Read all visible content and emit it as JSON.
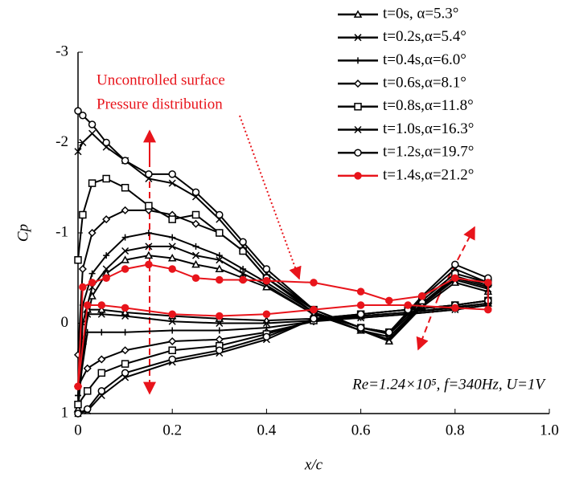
{
  "chart_data": {
    "type": "line",
    "xlabel": "x/c",
    "ylabel": "Cp",
    "annotations": [
      "Uncontrolled surface",
      "Pressure distribution",
      "Re=1.24×10⁵, f=340Hz, U=1V"
    ],
    "x": [
      0,
      0.01,
      0.03,
      0.06,
      0.1,
      0.15,
      0.2,
      0.25,
      0.3,
      0.35,
      0.4,
      0.5,
      0.6,
      0.66,
      0.73,
      0.8,
      0.87,
      0.87,
      0.8,
      0.7,
      0.6,
      0.5,
      0.4,
      0.3,
      0.2,
      0.1,
      0.05,
      0.02,
      0
    ],
    "xlim": [
      0,
      1
    ],
    "xticks": [
      0,
      0.2,
      0.4,
      0.6,
      0.8,
      {
        "value": 1,
        "label": "1.0"
      }
    ],
    "ylim": [
      1,
      -3
    ],
    "yticks": [
      1,
      0,
      -1,
      -2,
      -3
    ],
    "series": [
      {
        "name": "t=0s,  α=5.3°",
        "color": "#000000",
        "marker": "triangle",
        "values": [
          0.95,
          0.2,
          -0.3,
          -0.55,
          -0.7,
          -0.75,
          -0.72,
          -0.65,
          -0.6,
          -0.5,
          -0.4,
          -0.1,
          0.08,
          0.2,
          -0.18,
          -0.45,
          -0.35,
          -0.22,
          -0.17,
          -0.12,
          -0.08,
          -0.05,
          -0.03,
          -0.05,
          -0.08,
          -0.12,
          -0.15,
          -0.15,
          0.95
        ]
      },
      {
        "name": "t=0.2s,α=5.4°",
        "color": "#000000",
        "marker": "x",
        "values": [
          0.9,
          0,
          -0.4,
          -0.6,
          -0.8,
          -0.85,
          -0.85,
          -0.75,
          -0.7,
          -0.55,
          -0.42,
          -0.1,
          0.08,
          0.18,
          -0.2,
          -0.48,
          -0.38,
          -0.2,
          -0.15,
          -0.1,
          -0.06,
          -0.03,
          0,
          0,
          -0.02,
          -0.08,
          -0.1,
          -0.1,
          0.9
        ]
      },
      {
        "name": "t=0.4s,α=6.0°",
        "color": "#000000",
        "marker": "plus",
        "values": [
          0.8,
          -0.2,
          -0.55,
          -0.75,
          -0.95,
          -1.0,
          -0.95,
          -0.85,
          -0.75,
          -0.6,
          -0.45,
          -0.12,
          0.08,
          0.15,
          -0.2,
          -0.5,
          -0.4,
          -0.2,
          -0.15,
          -0.1,
          -0.06,
          -0.02,
          0.05,
          0.08,
          0.08,
          0.1,
          0.1,
          0.1,
          0.8
        ]
      },
      {
        "name": "t=0.6s,α=8.1°",
        "color": "#000000",
        "marker": "diamond",
        "values": [
          0.35,
          -0.6,
          -1.0,
          -1.15,
          -1.25,
          -1.25,
          -1.2,
          -1.1,
          -1.0,
          -0.8,
          -0.5,
          -0.12,
          0.05,
          0.12,
          -0.22,
          -0.52,
          -0.42,
          -0.22,
          -0.18,
          -0.12,
          -0.08,
          -0.02,
          0.1,
          0.18,
          0.2,
          0.3,
          0.4,
          0.5,
          0.7
        ]
      },
      {
        "name": "t=0.8s,α=11.8°",
        "color": "#000000",
        "marker": "square",
        "values": [
          -0.7,
          -1.2,
          -1.55,
          -1.6,
          -1.5,
          -1.3,
          -1.15,
          -1.2,
          -1.0,
          -0.8,
          -0.5,
          -0.15,
          0.05,
          0.1,
          -0.25,
          -0.55,
          -0.45,
          -0.25,
          -0.2,
          -0.15,
          -0.1,
          -0.03,
          0.12,
          0.25,
          0.3,
          0.45,
          0.55,
          0.75,
          0.9
        ]
      },
      {
        "name": "t=1.0s,α=16.3°",
        "color": "#000000",
        "marker": "x",
        "values": [
          -1.9,
          -2.0,
          -2.1,
          -1.95,
          -1.8,
          -1.6,
          -1.55,
          -1.4,
          -1.15,
          -0.85,
          -0.55,
          -0.15,
          0.05,
          0.1,
          -0.28,
          -0.6,
          -0.45,
          -0.25,
          -0.2,
          -0.15,
          -0.1,
          -0.05,
          0.18,
          0.33,
          0.43,
          0.6,
          0.8,
          0.97,
          1.0
        ]
      },
      {
        "name": "t=1.2s,α=19.7°",
        "color": "#000000",
        "marker": "circle",
        "values": [
          -2.35,
          -2.3,
          -2.2,
          -2.0,
          -1.8,
          -1.65,
          -1.65,
          -1.45,
          -1.2,
          -0.9,
          -0.6,
          -0.15,
          0.05,
          0.1,
          -0.3,
          -0.65,
          -0.5,
          -0.25,
          -0.2,
          -0.15,
          -0.1,
          -0.05,
          0.15,
          0.3,
          0.4,
          0.55,
          0.75,
          0.95,
          1.0
        ]
      },
      {
        "name": "t=1.4s,α=21.2°",
        "color": "#e8141b",
        "marker": "dot",
        "values": [
          0.7,
          -0.4,
          -0.45,
          -0.5,
          -0.6,
          -0.65,
          -0.6,
          -0.5,
          -0.48,
          -0.48,
          -0.47,
          -0.45,
          -0.35,
          -0.25,
          -0.3,
          -0.5,
          -0.45,
          -0.15,
          -0.17,
          -0.2,
          -0.2,
          -0.15,
          -0.1,
          -0.08,
          -0.1,
          -0.17,
          -0.2,
          -0.2,
          0.7
        ]
      }
    ]
  }
}
